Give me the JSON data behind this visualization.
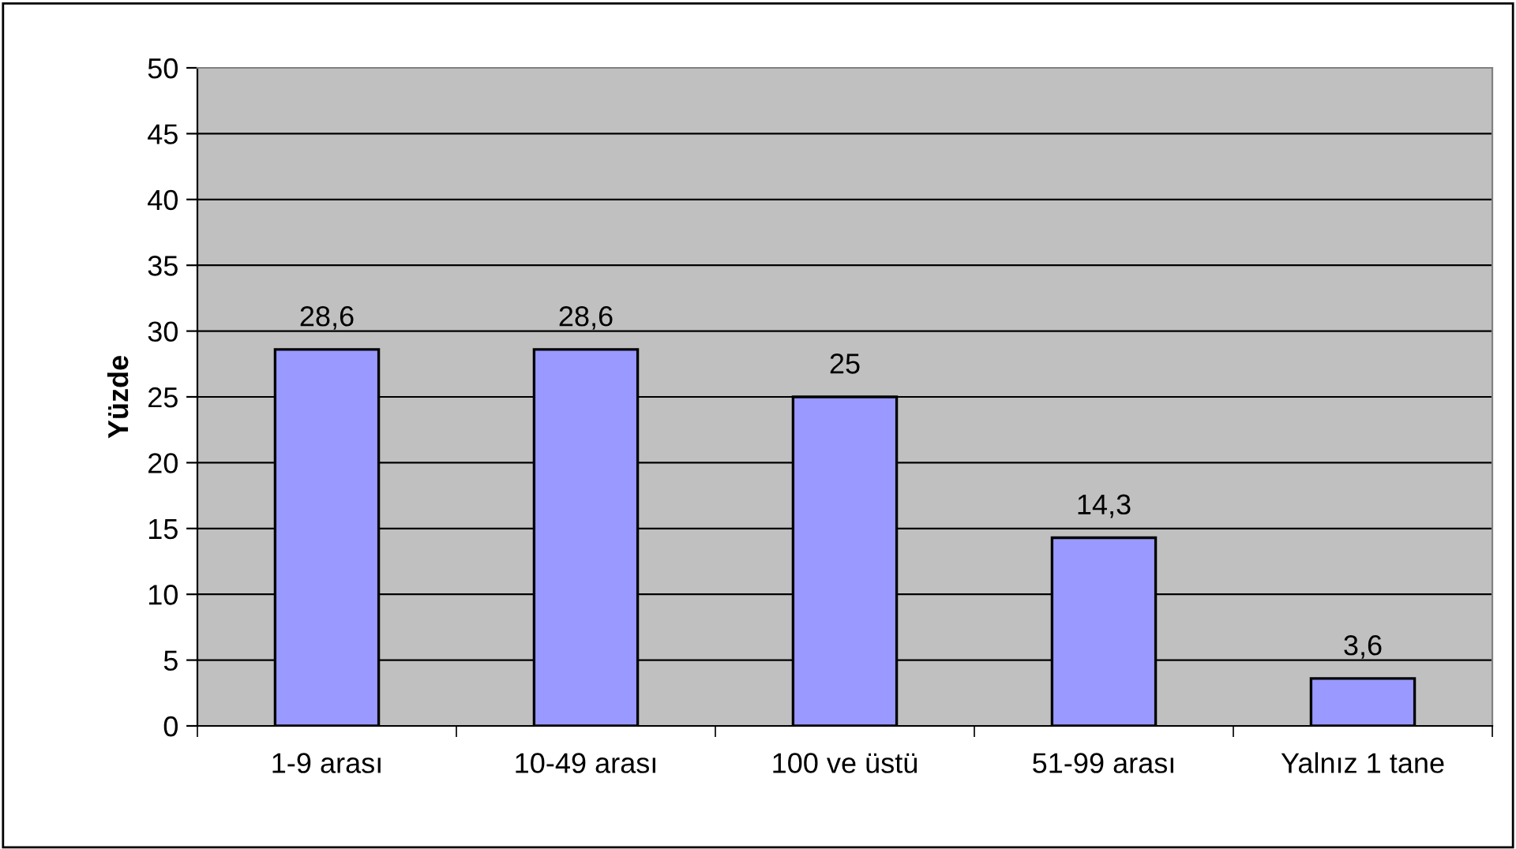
{
  "chart_data": {
    "type": "bar",
    "ylabel": "Yüzde",
    "categories": [
      "1-9 arası",
      "10-49 arası",
      "100 ve üstü",
      "51-99 arası",
      "Yalnız 1 tane"
    ],
    "values": [
      28.6,
      28.6,
      25,
      14.3,
      3.6
    ],
    "value_labels": [
      "28,6",
      "28,6",
      "25",
      "14,3",
      "3,6"
    ],
    "color": "#9999ff",
    "ylim": [
      0,
      50
    ],
    "yticks": [
      0,
      5,
      10,
      15,
      20,
      25,
      30,
      35,
      40,
      45,
      50
    ],
    "grid": "y",
    "legend": false
  }
}
